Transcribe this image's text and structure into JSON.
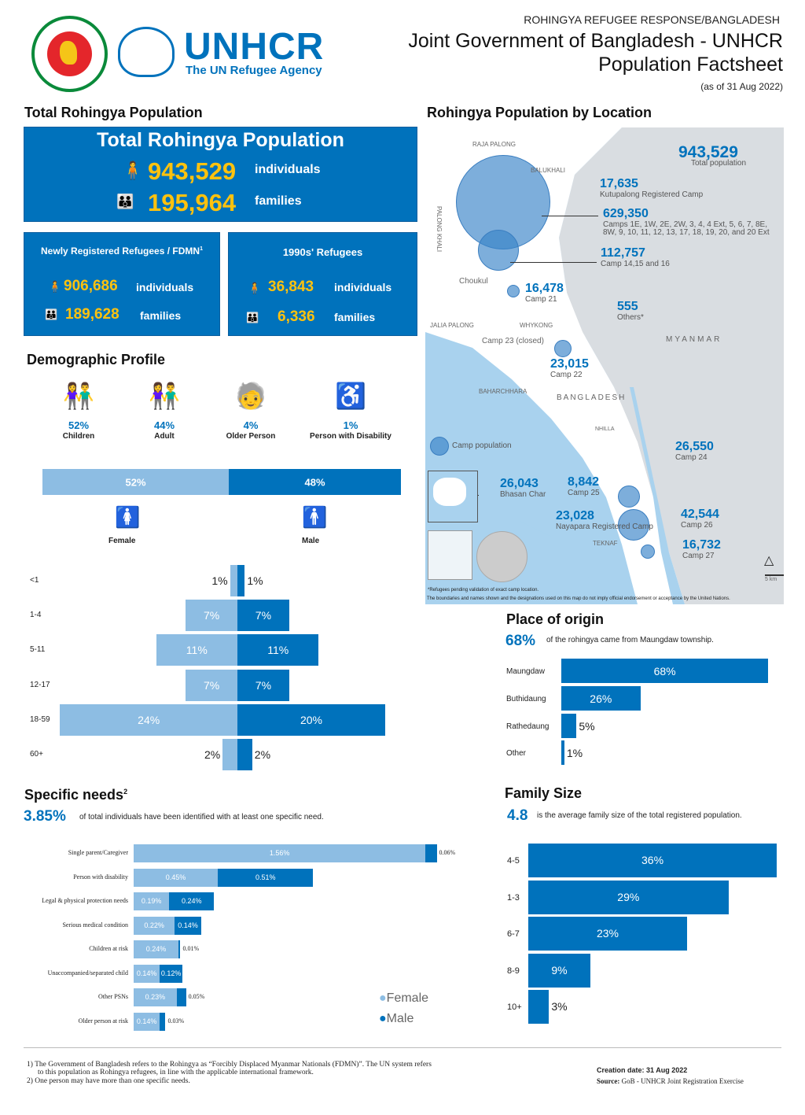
{
  "header": {
    "supertitle": "ROHINGYA REFUGEE RESPONSE/BANGLADESH",
    "title_line1": "Joint Government of Bangladesh - UNHCR",
    "title_line2": "Population Factsheet",
    "date": "(as of 31 Aug 2022)",
    "unhcr_logo": "UNHCR",
    "unhcr_tagline": "The UN Refugee Agency"
  },
  "total": {
    "section_title": "Total Rohingya Population",
    "box_title": "Total Rohingya Population",
    "individuals": "943,529",
    "individuals_label": "individuals",
    "families": "195,964",
    "families_label": "families"
  },
  "newly": {
    "title": "Newly Registered Refugees / FDMN",
    "sup": "1",
    "individuals": "906,686",
    "individuals_label": "individuals",
    "families": "189,628",
    "families_label": "families"
  },
  "nineties": {
    "title": "1990s' Refugees",
    "individuals": "36,843",
    "individuals_label": "individuals",
    "families": "6,336",
    "families_label": "families"
  },
  "demographic": {
    "title": "Demographic Profile",
    "groups": [
      {
        "pct": "52%",
        "label": "Children",
        "icon": "children-icon"
      },
      {
        "pct": "44%",
        "label": "Adult",
        "icon": "adult-icon"
      },
      {
        "pct": "4%",
        "label": "Older Person",
        "icon": "older-person-icon"
      },
      {
        "pct": "1%",
        "label": "Person with Disability",
        "icon": "wheelchair-icon"
      }
    ],
    "gender": {
      "female_pct": 52,
      "female_label": "52%",
      "male_pct": 48,
      "male_label": "48%",
      "female": "Female",
      "male": "Male"
    }
  },
  "chart_data": [
    {
      "type": "bar",
      "title": "",
      "categories": [
        "<1",
        "1-4",
        "5-11",
        "12-17",
        "18-59",
        "60+"
      ],
      "series": [
        {
          "name": "Female",
          "values": [
            1,
            7,
            11,
            7,
            24,
            2
          ]
        },
        {
          "name": "Male",
          "values": [
            1,
            7,
            11,
            7,
            20,
            2
          ]
        }
      ],
      "labels_female": [
        "1%",
        "7%",
        "11%",
        "7%",
        "24%",
        "2%"
      ],
      "labels_male": [
        "1%",
        "7%",
        "11%",
        "7%",
        "20%",
        "2%"
      ]
    },
    {
      "type": "bar",
      "title": "Specific needs",
      "sup": "2",
      "headline": "3.85%",
      "headline_text": "of total individuals have been identified with at least one specific need.",
      "categories": [
        "Single parent/Caregiver",
        "Person with disability",
        "Legal & physical protection needs",
        "Serious medical condition",
        "Children at risk",
        "Unaccompanied/separated child",
        "Other PSNs",
        "Older person at risk"
      ],
      "series": [
        {
          "name": "Female",
          "values": [
            1.56,
            0.45,
            0.19,
            0.22,
            0.24,
            0.14,
            0.23,
            0.14
          ]
        },
        {
          "name": "Male",
          "values": [
            0.06,
            0.51,
            0.24,
            0.14,
            0.01,
            0.12,
            0.05,
            0.03
          ]
        }
      ],
      "labels_female": [
        "1.56%",
        "0.45%",
        "0.19%",
        "0.22%",
        "0.24%",
        "0.14%",
        "0.23%",
        "0.14%"
      ],
      "labels_male": [
        "0.06%",
        "0.51%",
        "0.24%",
        "0.14%",
        "0.01%",
        "0.12%",
        "0.05%",
        "0.03%"
      ],
      "legend": [
        "Female",
        "Male"
      ]
    },
    {
      "type": "bar",
      "title": "Place of origin",
      "headline": "68%",
      "headline_text": "of the rohingya came from Maungdaw township.",
      "categories": [
        "Maungdaw",
        "Buthidaung",
        "Rathedaung",
        "Other"
      ],
      "values": [
        68,
        26,
        5,
        1
      ],
      "labels": [
        "68%",
        "26%",
        "5%",
        "1%"
      ]
    },
    {
      "type": "bar",
      "title": "Family Size",
      "headline": "4.8",
      "headline_text": "is the average family size of the total registered population.",
      "categories": [
        "4-5",
        "1-3",
        "6-7",
        "8-9",
        "10+"
      ],
      "values": [
        36,
        29,
        23,
        9,
        3
      ],
      "labels": [
        "36%",
        "29%",
        "23%",
        "9%",
        "3%"
      ]
    }
  ],
  "map": {
    "title": "Rohingya Population by Location",
    "total": "943,529",
    "total_label": "Total population",
    "places": [
      "RAJA PALONG",
      "PALONG KHALI",
      "BALUKHALI",
      "Choukul",
      "JALIA PALONG",
      "WHYKONG",
      "BAHARCHHARA",
      "BANGLADESH",
      "NHILLA",
      "TEKNAF",
      "MYANMAR",
      "Camp 23 (closed)"
    ],
    "callouts": [
      {
        "value": "17,635",
        "label": "Kutupalong Registered Camp"
      },
      {
        "value": "629,350",
        "label": "Camps 1E, 1W, 2E, 2W, 3, 4, 4 Ext, 5, 6, 7, 8E, 8W, 9, 10, 11, 12, 13, 17, 18, 19, 20, and 20 Ext"
      },
      {
        "value": "112,757",
        "label": "Camp 14,15 and 16"
      },
      {
        "value": "16,478",
        "label": "Camp 21"
      },
      {
        "value": "555",
        "label": "Others*"
      },
      {
        "value": "23,015",
        "label": "Camp 22"
      },
      {
        "value": "26,550",
        "label": "Camp 24"
      },
      {
        "value": "26,043",
        "label": "Bhasan Char"
      },
      {
        "value": "8,842",
        "label": "Camp 25"
      },
      {
        "value": "23,028",
        "label": "Nayapara Registered Camp"
      },
      {
        "value": "42,544",
        "label": "Camp 26"
      },
      {
        "value": "16,732",
        "label": "Camp 27"
      }
    ],
    "legend": "Camp population",
    "note1": "*Refugees pending validation of exact camp location.",
    "note2": "The boundaries and names shown and the designations used on this map do not imply official endorsement or acceptance by the United Nations.",
    "scale": "5 km"
  },
  "footer": {
    "note1a": "1) The Government of Bangladesh refers to the Rohingya as “Forcibly Displaced Myanmar Nationals (FDMN)”. The UN system refers",
    "note1b": "to this population as Rohingya refugees, in line with the applicable international framework.",
    "note2": "2) One person may have more than one specific needs.",
    "creation_label": "Creation date:",
    "creation": "31 Aug 2022",
    "source_label": "Source:",
    "source": "GoB - UNHCR Joint Registration Exercise"
  },
  "colors": {
    "primary": "#0072bc",
    "light": "#8dbde3",
    "highlight": "#ffc20e",
    "map_land": "#d9dde1",
    "map_water": "#a9d2ee"
  }
}
